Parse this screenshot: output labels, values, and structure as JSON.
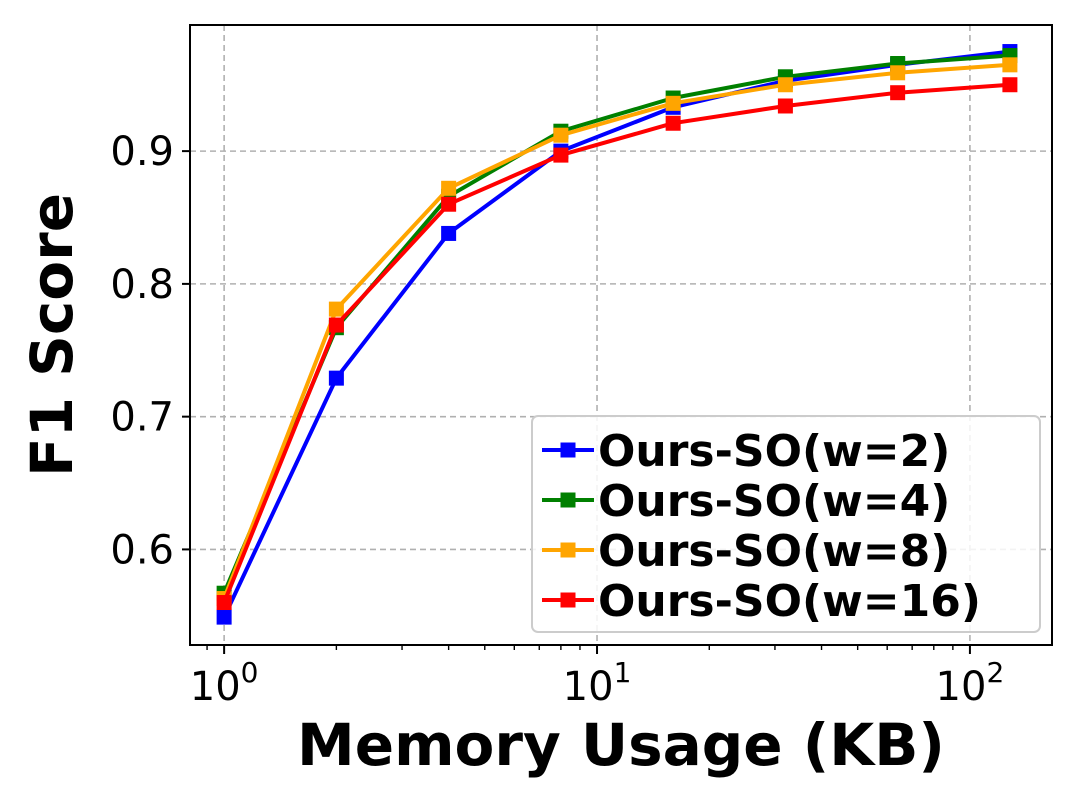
{
  "chart_data": {
    "type": "line",
    "xlabel": "Memory Usage (KB)",
    "ylabel": "F1 Score",
    "xscale": "log",
    "xlim": [
      0.81,
      166
    ],
    "ylim": [
      0.528,
      0.995
    ],
    "x_ticks": [
      {
        "value": 1,
        "base": "10",
        "exp": "0"
      },
      {
        "value": 10,
        "base": "10",
        "exp": "1"
      },
      {
        "value": 100,
        "base": "10",
        "exp": "2"
      }
    ],
    "y_ticks": [
      {
        "value": 0.6,
        "label": "0.6"
      },
      {
        "value": 0.7,
        "label": "0.7"
      },
      {
        "value": 0.8,
        "label": "0.8"
      },
      {
        "value": 0.9,
        "label": "0.9"
      }
    ],
    "grid": true,
    "legend_position": "lower-right",
    "x": [
      1,
      2,
      4,
      8,
      16,
      32,
      64,
      128
    ],
    "series": [
      {
        "name": "Ours-SO(w=2)",
        "color": "#0000ff",
        "values": [
          0.549,
          0.729,
          0.838,
          0.9,
          0.933,
          0.953,
          0.965,
          0.975
        ]
      },
      {
        "name": "Ours-SO(w=4)",
        "color": "#008000",
        "values": [
          0.567,
          0.767,
          0.866,
          0.915,
          0.94,
          0.956,
          0.966,
          0.972
        ]
      },
      {
        "name": "Ours-SO(w=8)",
        "color": "#ffa500",
        "values": [
          0.563,
          0.781,
          0.872,
          0.912,
          0.936,
          0.95,
          0.959,
          0.965
        ]
      },
      {
        "name": "Ours-SO(w=16)",
        "color": "#ff0000",
        "values": [
          0.56,
          0.769,
          0.86,
          0.897,
          0.921,
          0.934,
          0.944,
          0.95
        ]
      }
    ]
  }
}
